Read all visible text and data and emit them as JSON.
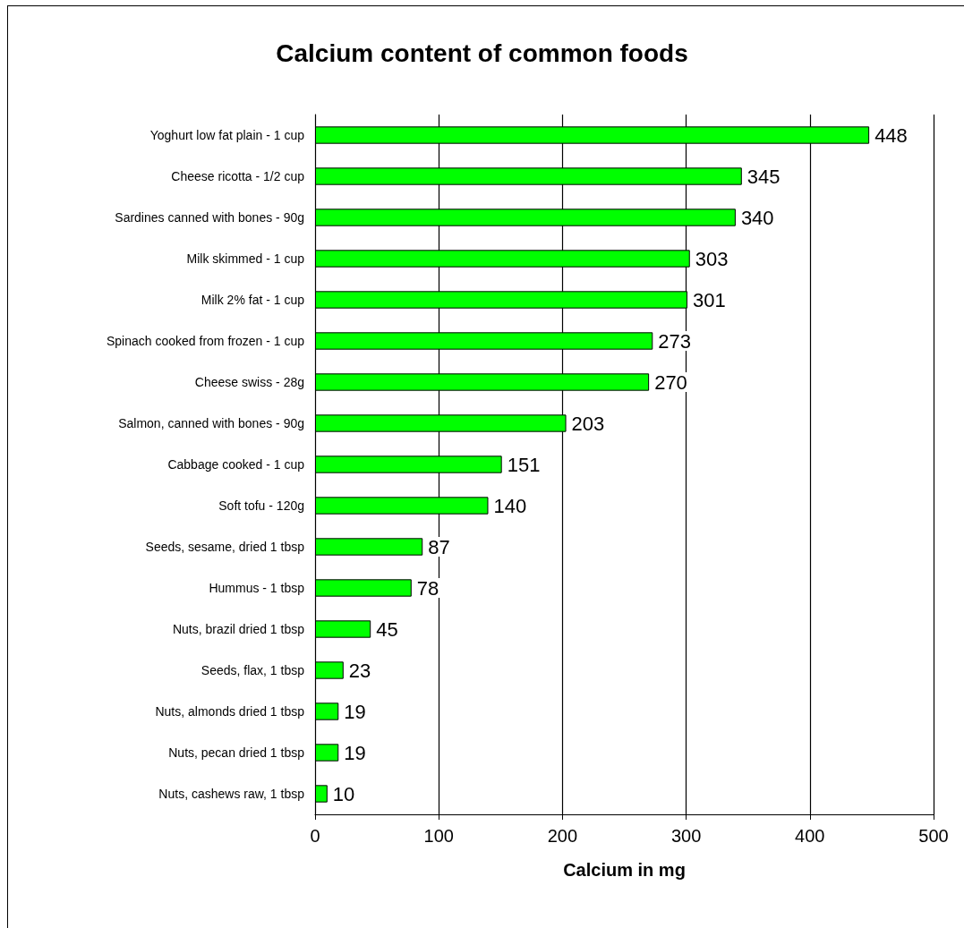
{
  "chart_data": {
    "type": "bar",
    "orientation": "horizontal",
    "title": "Calcium content of common foods",
    "xlabel": "Calcium in mg",
    "categories": [
      "Yoghurt low fat plain - 1 cup",
      "Cheese ricotta - 1/2 cup",
      "Sardines canned with bones - 90g",
      "Milk skimmed - 1 cup",
      "Milk 2% fat - 1 cup",
      "Spinach cooked from frozen - 1 cup",
      "Cheese swiss - 28g",
      "Salmon, canned with bones - 90g",
      "Cabbage cooked - 1 cup",
      "Soft tofu - 120g",
      "Seeds, sesame, dried 1 tbsp",
      "Hummus - 1 tbsp",
      "Nuts, brazil dried 1 tbsp",
      "Seeds, flax, 1 tbsp",
      "Nuts, almonds dried 1 tbsp",
      "Nuts, pecan dried 1 tbsp",
      "Nuts, cashews raw, 1 tbsp"
    ],
    "values": [
      448,
      345,
      340,
      303,
      301,
      273,
      270,
      203,
      151,
      140,
      87,
      78,
      45,
      23,
      19,
      19,
      10
    ],
    "color": "#00ff00",
    "xlim": [
      0,
      500
    ],
    "xticks": [
      0,
      100,
      200,
      300,
      400,
      500
    ],
    "grid": "x",
    "data_labels": true
  }
}
